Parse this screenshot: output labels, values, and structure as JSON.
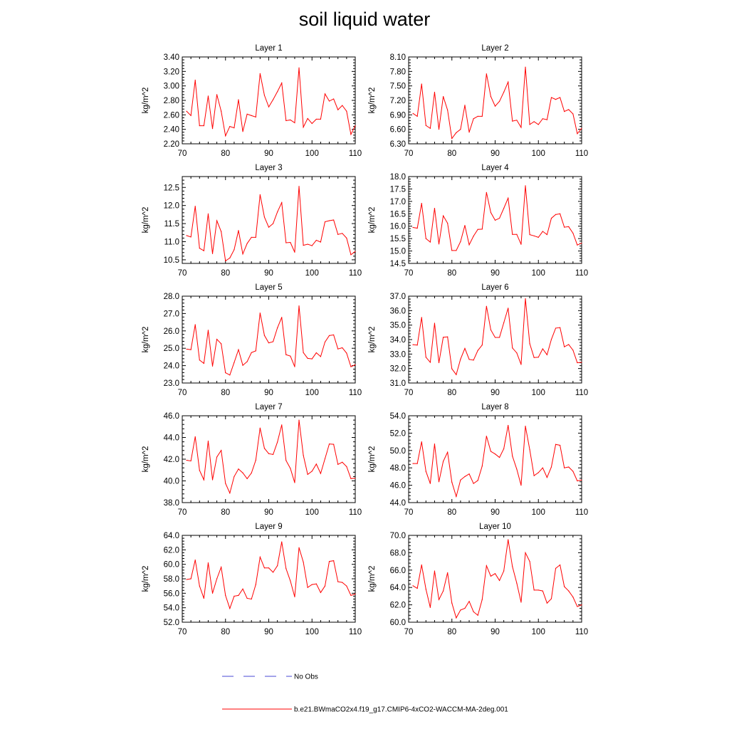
{
  "title": "soil liquid water",
  "legend": {
    "obs_label": "No Obs",
    "model_label": "b.e21.BWmaCO2x4.f19_g17.CMIP6-4xCO2-WACCM-MA-2deg.001",
    "obs_color": "#4a4ad6",
    "model_color": "#ff0000"
  },
  "chart_data": [
    {
      "type": "line",
      "title": "Layer 1",
      "ylabel": "kg/m^2",
      "xlabel": "",
      "xlim": [
        70,
        110
      ],
      "xticks": [
        70,
        80,
        90,
        100,
        110
      ],
      "ylim": [
        2.2,
        3.4
      ],
      "yticks": [
        "2.20",
        "2.40",
        "2.60",
        "2.80",
        "3.00",
        "3.20",
        "3.40"
      ],
      "x": [
        71,
        72,
        73,
        74,
        75,
        76,
        77,
        78,
        79,
        80,
        81,
        82,
        83,
        84,
        85,
        86,
        87,
        88,
        89,
        90,
        91,
        92,
        93,
        94,
        95,
        96,
        97,
        98,
        99,
        100,
        101,
        102,
        103,
        104,
        105,
        106,
        107,
        108,
        109,
        110
      ],
      "series": [
        {
          "name": "b.e21.BWmaCO2x4.f19_g17.CMIP6-4xCO2-WACCM-MA-2deg.001",
          "values": [
            2.65,
            2.59,
            3.08,
            2.45,
            2.45,
            2.86,
            2.41,
            2.88,
            2.65,
            2.31,
            2.44,
            2.42,
            2.81,
            2.37,
            2.61,
            2.59,
            2.57,
            3.17,
            2.87,
            2.71,
            2.81,
            2.92,
            3.04,
            2.52,
            2.53,
            2.49,
            3.25,
            2.43,
            2.55,
            2.48,
            2.54,
            2.54,
            2.89,
            2.79,
            2.82,
            2.67,
            2.73,
            2.65,
            2.33,
            2.45
          ]
        }
      ]
    },
    {
      "type": "line",
      "title": "Layer 2",
      "ylabel": "kg/m^2",
      "xlabel": "",
      "xlim": [
        70,
        110
      ],
      "xticks": [
        70,
        80,
        90,
        100,
        110
      ],
      "ylim": [
        6.3,
        8.1
      ],
      "yticks": [
        "6.30",
        "6.60",
        "6.90",
        "7.20",
        "7.50",
        "7.80",
        "8.10"
      ],
      "x": [
        71,
        72,
        73,
        74,
        75,
        76,
        77,
        78,
        79,
        80,
        81,
        82,
        83,
        84,
        85,
        86,
        87,
        88,
        89,
        90,
        91,
        92,
        93,
        94,
        95,
        96,
        97,
        98,
        99,
        100,
        101,
        102,
        103,
        104,
        105,
        106,
        107,
        108,
        109,
        110
      ],
      "series": [
        {
          "name": "b.e21.BWmaCO2x4.f19_g17.CMIP6-4xCO2-WACCM-MA-2deg.001",
          "values": [
            6.93,
            6.87,
            7.54,
            6.68,
            6.62,
            7.37,
            6.6,
            7.28,
            7.0,
            6.41,
            6.53,
            6.6,
            7.1,
            6.54,
            6.82,
            6.87,
            6.87,
            7.75,
            7.28,
            7.08,
            7.18,
            7.37,
            7.58,
            6.77,
            6.79,
            6.64,
            7.89,
            6.7,
            6.76,
            6.7,
            6.82,
            6.8,
            7.26,
            7.22,
            7.26,
            6.97,
            7.01,
            6.92,
            6.51,
            6.62
          ]
        }
      ]
    },
    {
      "type": "line",
      "title": "Layer 3",
      "ylabel": "kg/m^2",
      "xlabel": "",
      "xlim": [
        70,
        110
      ],
      "xticks": [
        70,
        80,
        90,
        100,
        110
      ],
      "ylim": [
        10.4,
        12.8
      ],
      "yticks": [
        "10.5",
        "11.0",
        "11.5",
        "12.0",
        "12.5"
      ],
      "x": [
        71,
        72,
        73,
        74,
        75,
        76,
        77,
        78,
        79,
        80,
        81,
        82,
        83,
        84,
        85,
        86,
        87,
        88,
        89,
        90,
        91,
        92,
        93,
        94,
        95,
        96,
        97,
        98,
        99,
        100,
        101,
        102,
        103,
        104,
        105,
        106,
        107,
        108,
        109,
        110
      ],
      "series": [
        {
          "name": "b.e21.BWmaCO2x4.f19_g17.CMIP6-4xCO2-WACCM-MA-2deg.001",
          "values": [
            11.17,
            11.13,
            11.98,
            10.82,
            10.75,
            11.77,
            10.67,
            11.58,
            11.28,
            10.47,
            10.55,
            10.78,
            11.31,
            10.66,
            10.95,
            11.12,
            11.12,
            12.3,
            11.68,
            11.4,
            11.5,
            11.82,
            12.08,
            10.97,
            10.98,
            10.71,
            12.53,
            10.9,
            10.93,
            10.89,
            11.04,
            10.99,
            11.55,
            11.58,
            11.6,
            11.2,
            11.23,
            11.1,
            10.64,
            10.73
          ]
        }
      ]
    },
    {
      "type": "line",
      "title": "Layer 4",
      "ylabel": "kg/m^2",
      "xlabel": "",
      "xlim": [
        70,
        110
      ],
      "xticks": [
        70,
        80,
        90,
        100,
        110
      ],
      "ylim": [
        14.5,
        18.0
      ],
      "yticks": [
        "14.5",
        "15.0",
        "15.5",
        "16.0",
        "16.5",
        "17.0",
        "17.5",
        "18.0"
      ],
      "x": [
        71,
        72,
        73,
        74,
        75,
        76,
        77,
        78,
        79,
        80,
        81,
        82,
        83,
        84,
        85,
        86,
        87,
        88,
        89,
        90,
        91,
        92,
        93,
        94,
        95,
        96,
        97,
        98,
        99,
        100,
        101,
        102,
        103,
        104,
        105,
        106,
        107,
        108,
        109,
        110
      ],
      "series": [
        {
          "name": "b.e21.BWmaCO2x4.f19_g17.CMIP6-4xCO2-WACCM-MA-2deg.001",
          "values": [
            15.95,
            15.92,
            16.92,
            15.5,
            15.36,
            16.72,
            15.28,
            16.42,
            16.12,
            15.02,
            15.02,
            15.38,
            16.03,
            15.25,
            15.6,
            15.87,
            15.88,
            17.36,
            16.55,
            16.24,
            16.32,
            16.72,
            17.13,
            15.67,
            15.67,
            15.27,
            17.63,
            15.66,
            15.61,
            15.55,
            15.79,
            15.66,
            16.32,
            16.47,
            16.5,
            15.96,
            15.98,
            15.72,
            15.24,
            15.32
          ]
        }
      ]
    },
    {
      "type": "line",
      "title": "Layer 5",
      "ylabel": "kg/m^2",
      "xlabel": "",
      "xlim": [
        70,
        110
      ],
      "xticks": [
        70,
        80,
        90,
        100,
        110
      ],
      "ylim": [
        23.0,
        28.0
      ],
      "yticks": [
        "23.0",
        "24.0",
        "25.0",
        "26.0",
        "27.0",
        "28.0"
      ],
      "x": [
        71,
        72,
        73,
        74,
        75,
        76,
        77,
        78,
        79,
        80,
        81,
        82,
        83,
        84,
        85,
        86,
        87,
        88,
        89,
        90,
        91,
        92,
        93,
        94,
        95,
        96,
        97,
        98,
        99,
        100,
        101,
        102,
        103,
        104,
        105,
        106,
        107,
        108,
        109,
        110
      ],
      "series": [
        {
          "name": "b.e21.BWmaCO2x4.f19_g17.CMIP6-4xCO2-WACCM-MA-2deg.001",
          "values": [
            24.95,
            24.92,
            26.36,
            24.32,
            24.13,
            26.04,
            23.97,
            25.52,
            25.26,
            23.59,
            23.46,
            24.18,
            24.92,
            24.02,
            24.23,
            24.75,
            24.85,
            27.03,
            25.74,
            25.31,
            25.38,
            26.17,
            26.78,
            24.63,
            24.55,
            23.94,
            27.44,
            24.75,
            24.42,
            24.39,
            24.74,
            24.52,
            25.36,
            25.73,
            25.77,
            24.96,
            25.03,
            24.72,
            23.94,
            24.05
          ]
        }
      ]
    },
    {
      "type": "line",
      "title": "Layer 6",
      "ylabel": "kg/m^2",
      "xlabel": "",
      "xlim": [
        70,
        110
      ],
      "xticks": [
        70,
        80,
        90,
        100,
        110
      ],
      "ylim": [
        31.0,
        37.0
      ],
      "yticks": [
        "31.0",
        "32.0",
        "33.0",
        "34.0",
        "35.0",
        "36.0",
        "37.0"
      ],
      "x": [
        71,
        72,
        73,
        74,
        75,
        76,
        77,
        78,
        79,
        80,
        81,
        82,
        83,
        84,
        85,
        86,
        87,
        88,
        89,
        90,
        91,
        92,
        93,
        94,
        95,
        96,
        97,
        98,
        99,
        100,
        101,
        102,
        103,
        104,
        105,
        106,
        107,
        108,
        109,
        110
      ],
      "series": [
        {
          "name": "b.e21.BWmaCO2x4.f19_g17.CMIP6-4xCO2-WACCM-MA-2deg.001",
          "values": [
            33.65,
            33.62,
            35.53,
            32.78,
            32.43,
            35.13,
            32.4,
            34.16,
            34.19,
            31.98,
            31.58,
            32.65,
            33.39,
            32.63,
            32.58,
            33.25,
            33.62,
            36.3,
            34.67,
            34.15,
            34.15,
            35.16,
            36.17,
            33.42,
            33.08,
            32.28,
            36.83,
            33.72,
            32.76,
            32.78,
            33.36,
            32.95,
            34.01,
            34.79,
            34.83,
            33.5,
            33.66,
            33.27,
            32.4,
            32.43
          ]
        }
      ]
    },
    {
      "type": "line",
      "title": "Layer 7",
      "ylabel": "kg/m^2",
      "xlabel": "",
      "xlim": [
        70,
        110
      ],
      "xticks": [
        70,
        80,
        90,
        100,
        110
      ],
      "ylim": [
        38.0,
        46.0
      ],
      "yticks": [
        "38.0",
        "40.0",
        "42.0",
        "44.0",
        "46.0"
      ],
      "x": [
        71,
        72,
        73,
        74,
        75,
        76,
        77,
        78,
        79,
        80,
        81,
        82,
        83,
        84,
        85,
        86,
        87,
        88,
        89,
        90,
        91,
        92,
        93,
        94,
        95,
        96,
        97,
        98,
        99,
        100,
        101,
        102,
        103,
        104,
        105,
        106,
        107,
        108,
        109,
        110
      ],
      "series": [
        {
          "name": "b.e21.BWmaCO2x4.f19_g17.CMIP6-4xCO2-WACCM-MA-2deg.001",
          "values": [
            41.9,
            41.84,
            44.07,
            40.97,
            40.1,
            43.67,
            40.1,
            42.2,
            42.81,
            39.77,
            38.88,
            40.4,
            41.1,
            40.74,
            40.2,
            40.73,
            41.9,
            44.87,
            43.0,
            42.51,
            42.43,
            43.57,
            45.16,
            41.88,
            41.15,
            39.84,
            45.6,
            42.35,
            40.6,
            40.89,
            41.55,
            40.68,
            42.04,
            43.4,
            43.37,
            41.52,
            41.72,
            41.32,
            40.21,
            40.25
          ]
        }
      ]
    },
    {
      "type": "line",
      "title": "Layer 8",
      "ylabel": "kg/m^2",
      "xlabel": "",
      "xlim": [
        70,
        110
      ],
      "xticks": [
        70,
        80,
        90,
        100,
        110
      ],
      "ylim": [
        44.0,
        54.0
      ],
      "yticks": [
        "44.0",
        "46.0",
        "48.0",
        "50.0",
        "52.0",
        "54.0"
      ],
      "x": [
        71,
        72,
        73,
        74,
        75,
        76,
        77,
        78,
        79,
        80,
        81,
        82,
        83,
        84,
        85,
        86,
        87,
        88,
        89,
        90,
        91,
        92,
        93,
        94,
        95,
        96,
        97,
        98,
        99,
        100,
        101,
        102,
        103,
        104,
        105,
        106,
        107,
        108,
        109,
        110
      ],
      "series": [
        {
          "name": "b.e21.BWmaCO2x4.f19_g17.CMIP6-4xCO2-WACCM-MA-2deg.001",
          "values": [
            48.5,
            48.5,
            51.0,
            47.6,
            46.2,
            50.75,
            46.4,
            48.75,
            49.8,
            46.35,
            44.7,
            46.6,
            47.0,
            47.3,
            46.2,
            46.55,
            48.2,
            51.65,
            49.9,
            49.6,
            49.2,
            50.2,
            52.9,
            49.35,
            47.85,
            46.0,
            52.8,
            50.1,
            47.1,
            47.45,
            48.0,
            46.9,
            48.1,
            50.7,
            50.6,
            48.0,
            48.1,
            47.6,
            46.5,
            46.6
          ]
        }
      ]
    },
    {
      "type": "line",
      "title": "Layer 9",
      "ylabel": "kg/m^2",
      "xlabel": "",
      "xlim": [
        70,
        110
      ],
      "xticks": [
        70,
        80,
        90,
        100,
        110
      ],
      "ylim": [
        52.0,
        64.0
      ],
      "yticks": [
        "52.0",
        "54.0",
        "56.0",
        "58.0",
        "60.0",
        "62.0",
        "64.0"
      ],
      "x": [
        71,
        72,
        73,
        74,
        75,
        76,
        77,
        78,
        79,
        80,
        81,
        82,
        83,
        84,
        85,
        86,
        87,
        88,
        89,
        90,
        91,
        92,
        93,
        94,
        95,
        96,
        97,
        98,
        99,
        100,
        101,
        102,
        103,
        104,
        105,
        106,
        107,
        108,
        109,
        110
      ],
      "series": [
        {
          "name": "b.e21.BWmaCO2x4.f19_g17.CMIP6-4xCO2-WACCM-MA-2deg.001",
          "values": [
            57.9,
            58.0,
            60.6,
            57.0,
            55.3,
            60.2,
            56.0,
            58.0,
            59.6,
            55.7,
            53.9,
            55.6,
            55.7,
            56.6,
            55.3,
            55.2,
            57.2,
            61.0,
            59.5,
            59.5,
            58.9,
            59.8,
            63.1,
            59.4,
            57.7,
            55.5,
            62.3,
            60.3,
            56.8,
            57.2,
            57.3,
            56.1,
            57.0,
            60.4,
            60.5,
            57.6,
            57.5,
            57.0,
            55.7,
            55.9
          ]
        }
      ]
    },
    {
      "type": "line",
      "title": "Layer 10",
      "ylabel": "kg/m^2",
      "xlabel": "",
      "xlim": [
        70,
        110
      ],
      "xticks": [
        70,
        80,
        90,
        100,
        110
      ],
      "ylim": [
        60.0,
        70.0
      ],
      "yticks": [
        "60.0",
        "62.0",
        "64.0",
        "66.0",
        "68.0",
        "70.0"
      ],
      "x": [
        71,
        72,
        73,
        74,
        75,
        76,
        77,
        78,
        79,
        80,
        81,
        82,
        83,
        84,
        85,
        86,
        87,
        88,
        89,
        90,
        91,
        92,
        93,
        94,
        95,
        96,
        97,
        98,
        99,
        100,
        101,
        102,
        103,
        104,
        105,
        106,
        107,
        108,
        109,
        110
      ],
      "series": [
        {
          "name": "b.e21.BWmaCO2x4.f19_g17.CMIP6-4xCO2-WACCM-MA-2deg.001",
          "values": [
            64.2,
            63.9,
            66.6,
            63.8,
            61.7,
            65.9,
            62.6,
            63.6,
            65.7,
            62.2,
            60.5,
            61.4,
            61.6,
            62.4,
            61.2,
            60.8,
            62.6,
            66.5,
            65.3,
            65.6,
            64.8,
            65.9,
            69.5,
            66.4,
            64.5,
            62.3,
            68.0,
            67.0,
            63.7,
            63.7,
            63.6,
            62.2,
            62.7,
            66.2,
            66.6,
            64.1,
            63.6,
            62.9,
            61.8,
            62.0
          ]
        }
      ]
    }
  ]
}
